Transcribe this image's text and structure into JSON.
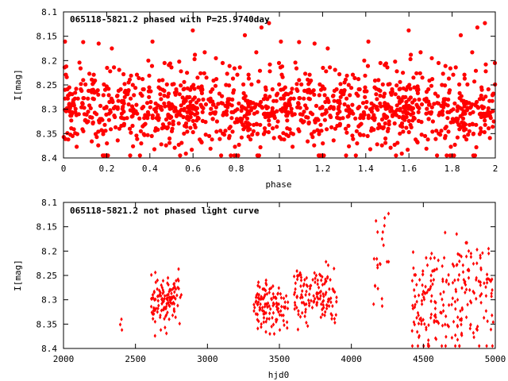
{
  "colors": {
    "series": "#ff0000",
    "frame": "#000000",
    "background": "#ffffff"
  },
  "chart_data": [
    {
      "type": "scatter",
      "title": "065118-5821.2 phased with P=25.9740day",
      "xlabel": "phase",
      "ylabel": "I[mag]",
      "xlim": [
        0,
        2
      ],
      "ylim": [
        8.1,
        8.4
      ],
      "y_inverted": true,
      "grid": false,
      "marker": "filled circle",
      "xticks": [
        "0",
        "0.2",
        "0.4",
        "0.6",
        "0.8",
        "1",
        "1.2",
        "1.4",
        "1.6",
        "1.8",
        "2"
      ],
      "yticks": [
        "8.1",
        "8.15",
        "8.2",
        "8.25",
        "8.3",
        "8.35",
        "8.4"
      ],
      "series": [
        {
          "x": [],
          "y": []
        }
      ]
    },
    {
      "type": "scatter",
      "title": "065118-5821.2 not phased light curve",
      "xlabel": "hjd0",
      "ylabel": "I[mag]",
      "xlim": [
        2000,
        5000
      ],
      "ylim": [
        8.1,
        8.4
      ],
      "y_inverted": true,
      "grid": false,
      "marker": "small diamond",
      "xticks": [
        "2000",
        "2500",
        "3000",
        "3500",
        "4000",
        "4500",
        "5000"
      ],
      "yticks": [
        "8.1",
        "8.15",
        "8.2",
        "8.25",
        "8.3",
        "8.35",
        "8.4"
      ],
      "series": [
        {
          "x": [],
          "y": []
        }
      ]
    }
  ]
}
